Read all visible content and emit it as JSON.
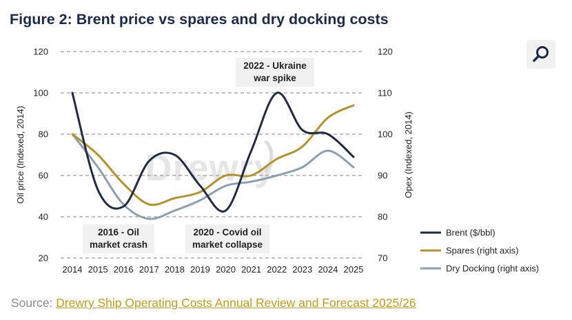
{
  "title": "Figure 2: Brent price vs spares and dry docking costs",
  "source": {
    "label": "Source:",
    "link_text": "Drewry Ship Operating Costs Annual Review and Forecast 2025/26"
  },
  "search": {
    "icon": "search-icon"
  },
  "colors": {
    "title": "#1b2a4a",
    "brent": "#1f2a44",
    "spares": "#b5902b",
    "dry_docking": "#8a9fb2",
    "grid": "#9a9a9a",
    "source_link": "#c49a1f"
  },
  "chart_data": {
    "type": "line",
    "title": "Figure 2: Brent price vs spares and dry docking costs",
    "x": [
      "2014",
      "2015",
      "2016",
      "2017",
      "2018",
      "2019",
      "2020",
      "2021",
      "2022",
      "2023",
      "2024",
      "2025"
    ],
    "ylabel": "Oil price (Indexed, 2014)",
    "ylim": [
      20,
      120
    ],
    "yticks": [
      20,
      40,
      60,
      80,
      100,
      120
    ],
    "y2label": "Opex (Indexed, 2014)",
    "y2lim": [
      70,
      120
    ],
    "y2ticks": [
      70,
      80,
      90,
      100,
      110,
      120
    ],
    "grid": true,
    "legend_position": "bottom-right",
    "watermark": "Drewry",
    "series": [
      {
        "name": "Brent ($/bbl)",
        "axis": "left",
        "color": "#1f2a44",
        "values": [
          100,
          53,
          45,
          67,
          70,
          55,
          43,
          72,
          100,
          82,
          80,
          69
        ]
      },
      {
        "name": "Spares (right axis)",
        "axis": "right",
        "color": "#b5902b",
        "values": [
          100,
          95,
          88,
          83,
          84.5,
          86,
          90,
          90,
          94,
          97,
          104,
          107
        ]
      },
      {
        "name": "Dry Docking (right axis)",
        "axis": "right",
        "color": "#8a9fb2",
        "values": [
          100,
          92,
          83,
          79.5,
          81.5,
          84,
          87.5,
          88.5,
          90,
          92,
          96,
          92
        ]
      }
    ],
    "annotations": [
      {
        "lines": [
          "2016 - Oil",
          "market crash"
        ],
        "year": "2016"
      },
      {
        "lines": [
          "2020 - Covid oil",
          "market collapse"
        ],
        "year": "2020"
      },
      {
        "lines": [
          "2022 - Ukraine",
          "war spike"
        ],
        "year": "2022"
      }
    ]
  }
}
